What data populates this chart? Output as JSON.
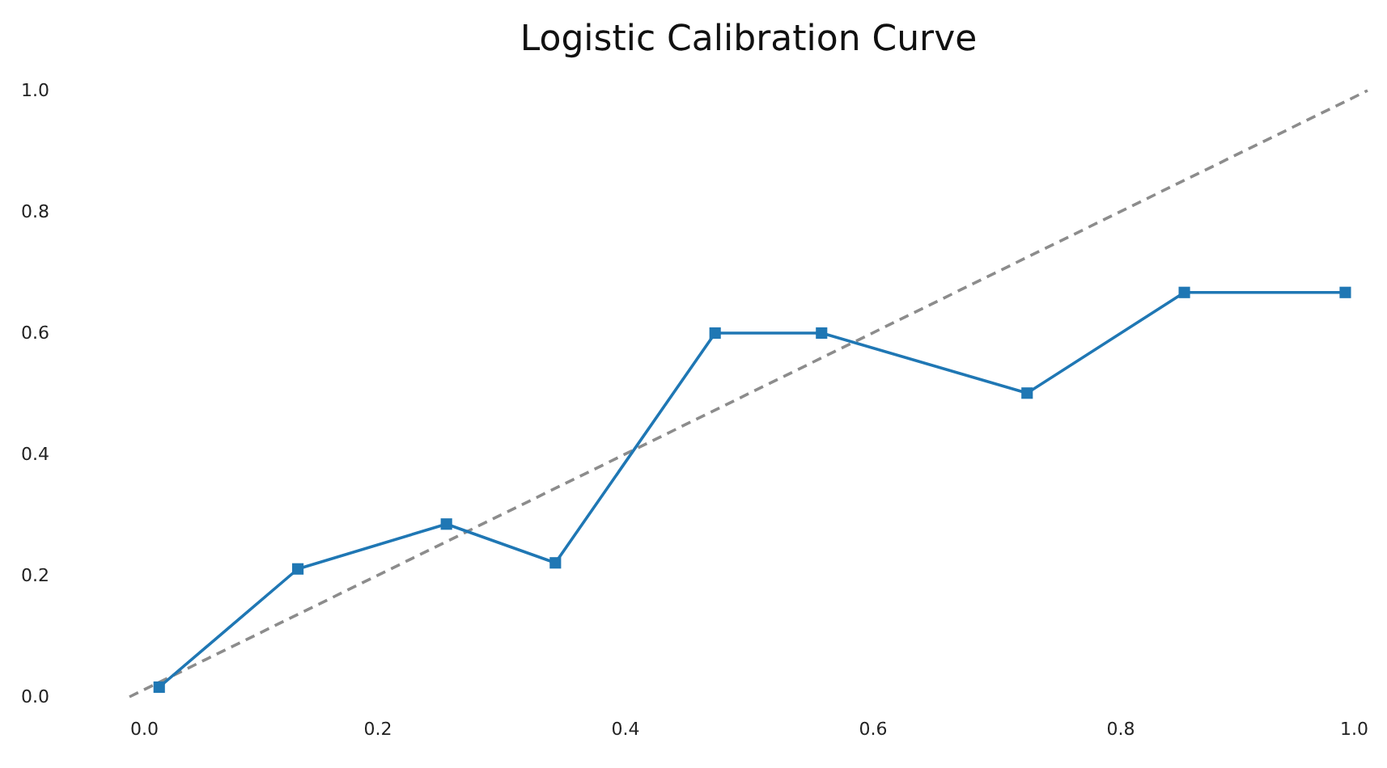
{
  "chart_data": {
    "type": "line",
    "title": "Logistic Calibration Curve",
    "xlim": [
      0,
      1
    ],
    "ylim": [
      0,
      1
    ],
    "xticks": [
      {
        "value": 0,
        "label": "0.0"
      },
      {
        "value": 0.2,
        "label": "0.2"
      },
      {
        "value": 0.4,
        "label": "0.4"
      },
      {
        "value": 0.6,
        "label": "0.6"
      },
      {
        "value": 0.8,
        "label": "0.8"
      },
      {
        "value": 1,
        "label": "1.0"
      }
    ],
    "yticks": [
      {
        "value": 0,
        "label": "0.0"
      },
      {
        "value": 0.2,
        "label": "0.2"
      },
      {
        "value": 0.4,
        "label": "0.4"
      },
      {
        "value": 0.6,
        "label": "0.6"
      },
      {
        "value": 0.8,
        "label": "0.8"
      },
      {
        "value": 1,
        "label": "1.0"
      }
    ],
    "grid": false,
    "series": [
      {
        "color": "#8c8c8c",
        "line_style": "dashed",
        "marker": "none",
        "x": [
          0,
          1
        ],
        "values": [
          0,
          1
        ]
      },
      {
        "color": "#1f77b4",
        "line_style": "solid",
        "marker": "square",
        "x": [
          0.024,
          0.136,
          0.256,
          0.344,
          0.473,
          0.559,
          0.725,
          0.852,
          0.982
        ],
        "values": [
          0.016,
          0.211,
          0.285,
          0.221,
          0.6,
          0.6,
          0.501,
          0.667,
          0.667
        ]
      }
    ]
  }
}
